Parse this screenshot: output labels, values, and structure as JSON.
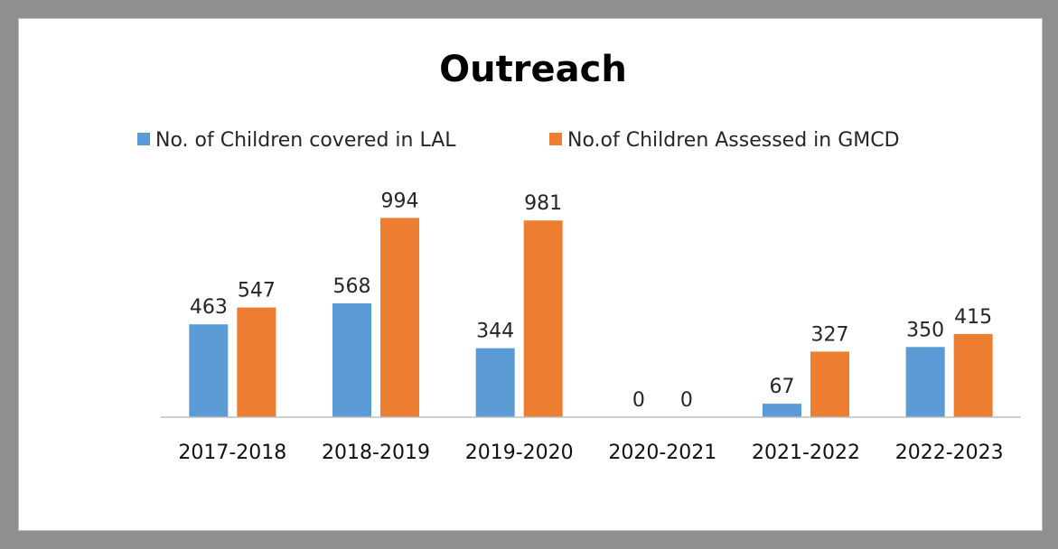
{
  "chart_data": {
    "type": "bar",
    "title": "Outreach",
    "categories": [
      "2017-2018",
      "2018-2019",
      "2019-2020",
      "2020-2021",
      "2021-2022",
      "2022-2023"
    ],
    "series": [
      {
        "name": "No. of Children covered in LAL",
        "color": "#5B9BD5",
        "values": [
          463,
          568,
          344,
          0,
          67,
          350
        ]
      },
      {
        "name": "No.of Children Assessed in GMCD",
        "color": "#ED7D31",
        "values": [
          547,
          994,
          981,
          0,
          327,
          415
        ]
      }
    ],
    "ylim": [
      0,
      1000
    ],
    "legend_position": "top-left",
    "grid": false,
    "data_labels": true
  }
}
